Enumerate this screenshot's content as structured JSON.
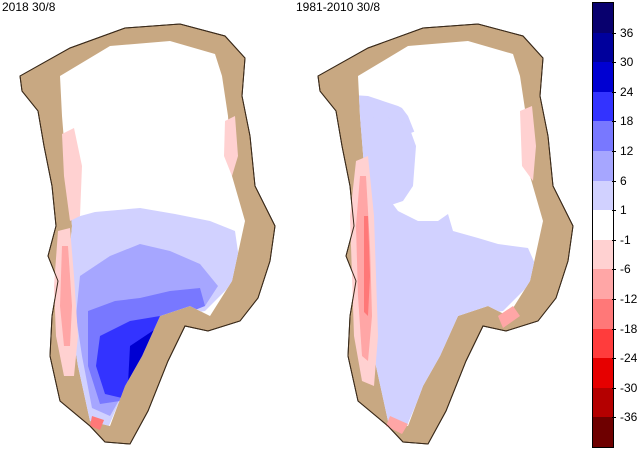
{
  "maps": [
    {
      "title": "2018 30/8"
    },
    {
      "title": "1981-2010 30/8"
    }
  ],
  "legend": {
    "bins": [
      {
        "color": "#08006e"
      },
      {
        "color": "#00009c"
      },
      {
        "color": "#0000d2"
      },
      {
        "color": "#3333ff"
      },
      {
        "color": "#7878ff"
      },
      {
        "color": "#a6a6ff"
      },
      {
        "color": "#d1d1ff"
      },
      {
        "color": "#ffffff"
      },
      {
        "color": "#ffd1d1"
      },
      {
        "color": "#ffa6a6"
      },
      {
        "color": "#ff7878"
      },
      {
        "color": "#ff3c3c"
      },
      {
        "color": "#e60000"
      },
      {
        "color": "#b40000"
      },
      {
        "color": "#6e0000"
      }
    ],
    "labels": [
      "36",
      "30",
      "24",
      "18",
      "12",
      "6",
      "1",
      "-1",
      "-6",
      "-12",
      "-18",
      "-24",
      "-30",
      "-36"
    ]
  },
  "colors": {
    "land": "#c8a882",
    "coast": "#3a2a1a",
    "ice": "#ffffff"
  }
}
